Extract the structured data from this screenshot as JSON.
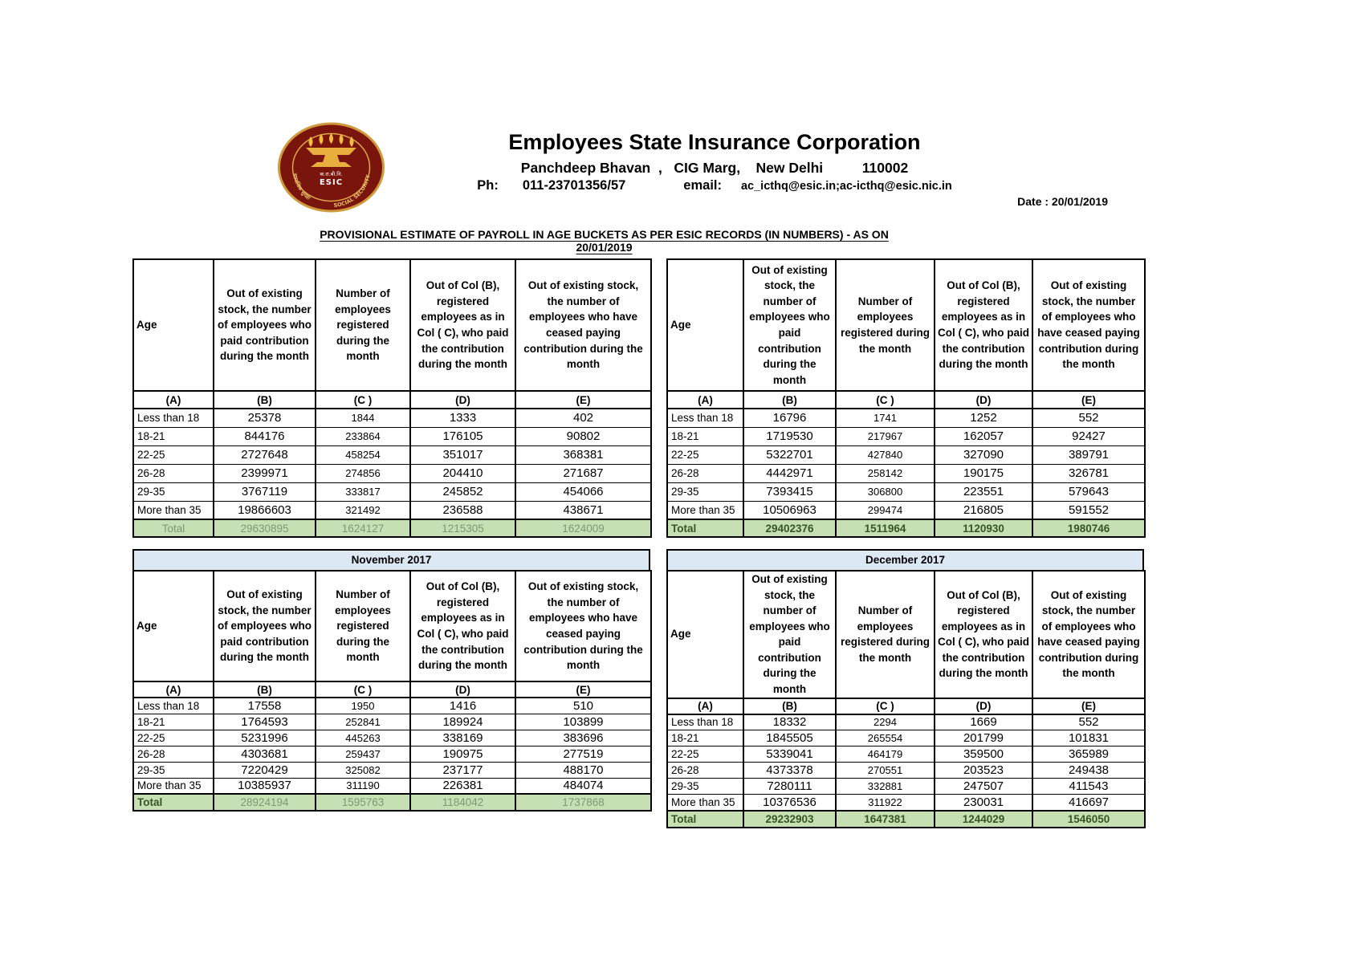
{
  "header": {
    "org_name": "Employees State Insurance Corporation",
    "address_line": "Panchdeep Bhavan  ,   CIG Marg,    New Delhi          110002",
    "phone_label": "Ph:",
    "phone": "011-23701356/57",
    "email_label": "email:",
    "email": "ac_icthq@esic.in;ac-icthq@esic.nic.in",
    "date_line": "Date : 20/01/2019",
    "logo": {
      "hindi_abbr": "क.रा.बी.नि.",
      "abbr": "ESIC",
      "hindi_arc_text": "सामाजिक सुरक्षा",
      "arc_text": "SOCIAL SECURITY"
    }
  },
  "doc_title": "PROVISIONAL ESTIMATE OF PAYROLL IN AGE BUCKETS AS PER ESIC RECORDS (IN NUMBERS) - AS ON 20/01/2019",
  "colors": {
    "total_row_bg": "#c6e0b4",
    "total_muted_text": "#7f9873",
    "total_bold_text": "#375623",
    "month_band_bg": "#dce9f5",
    "logo_maroon": "#7a150d",
    "logo_gold": "#e0a84a"
  },
  "tables": [
    {
      "month": "",
      "columns": [
        "Age",
        "Out of existing stock, the number of employees who paid contribution during the month",
        "Number of employees registered during the month",
        "Out of Col (B), registered employees as in Col ( C), who paid the contribution during the month",
        "Out of existing stock, the number of employees who have ceased paying contribution during the month"
      ],
      "letters": [
        "(A)",
        "(B)",
        "(C )",
        "(D)",
        "(E)"
      ],
      "rows": [
        [
          "Less than 18",
          "25378",
          "1844",
          "1333",
          "402"
        ],
        [
          "18-21",
          "844176",
          "233864",
          "176105",
          "90802"
        ],
        [
          "22-25",
          "2727648",
          "458254",
          "351017",
          "368381"
        ],
        [
          "26-28",
          "2399971",
          "274856",
          "204410",
          "271687"
        ],
        [
          "29-35",
          "3767119",
          "333817",
          "245852",
          "454066"
        ],
        [
          "More than 35",
          "19866603",
          "321492",
          "236588",
          "438671"
        ]
      ],
      "total": [
        "Total",
        "29630895",
        "1624127",
        "1215305",
        "1624009"
      ]
    },
    {
      "month": "",
      "columns": [
        "Age",
        "Out of existing stock, the number of employees who paid contribution during the month",
        "Number of employees registered during the month",
        "Out of Col (B), registered employees as in Col ( C), who paid the contribution during the month",
        "Out of existing stock, the number of employees who have ceased paying contribution during the month"
      ],
      "letters": [
        "(A)",
        "(B)",
        "(C )",
        "(D)",
        "(E)"
      ],
      "rows": [
        [
          "Less than 18",
          "16796",
          "1741",
          "1252",
          "552"
        ],
        [
          "18-21",
          "1719530",
          "217967",
          "162057",
          "92427"
        ],
        [
          "22-25",
          "5322701",
          "427840",
          "327090",
          "389791"
        ],
        [
          "26-28",
          "4442971",
          "258142",
          "190175",
          "326781"
        ],
        [
          "29-35",
          "7393415",
          "306800",
          "223551",
          "579643"
        ],
        [
          "More than 35",
          "10506963",
          "299474",
          "216805",
          "591552"
        ]
      ],
      "total": [
        "Total",
        "29402376",
        "1511964",
        "1120930",
        "1980746"
      ]
    },
    {
      "month": "November 2017",
      "columns": [
        "Age",
        "Out of existing stock, the number of employees who paid contribution during the month",
        "Number of employees registered during the month",
        "Out of Col (B), registered employees as in Col ( C), who paid the contribution during the month",
        "Out of existing stock, the number of employees who have ceased paying contribution during the month"
      ],
      "letters": [
        "(A)",
        "(B)",
        "(C )",
        "(D)",
        "(E)"
      ],
      "rows": [
        [
          "Less than 18",
          "17558",
          "1950",
          "1416",
          "510"
        ],
        [
          "18-21",
          "1764593",
          "252841",
          "189924",
          "103899"
        ],
        [
          "22-25",
          "5231996",
          "445263",
          "338169",
          "383696"
        ],
        [
          "26-28",
          "4303681",
          "259437",
          "190975",
          "277519"
        ],
        [
          "29-35",
          "7220429",
          "325082",
          "237177",
          "488170"
        ],
        [
          "More than 35",
          "10385937",
          "311190",
          "226381",
          "484074"
        ]
      ],
      "total": [
        "Total",
        "28924194",
        "1595763",
        "1184042",
        "1737868"
      ]
    },
    {
      "month": "December 2017",
      "columns": [
        "Age",
        "Out of existing stock, the number of employees who paid contribution during the month",
        "Number of employees registered during the month",
        "Out of Col (B), registered employees as in Col ( C), who paid the contribution during the month",
        "Out of existing stock, the number of employees who have ceased paying contribution during the month"
      ],
      "letters": [
        "(A)",
        "(B)",
        "(C )",
        "(D)",
        "(E)"
      ],
      "rows": [
        [
          "Less than 18",
          "18332",
          "2294",
          "1669",
          "552"
        ],
        [
          "18-21",
          "1845505",
          "265554",
          "201799",
          "101831"
        ],
        [
          "22-25",
          "5339041",
          "464179",
          "359500",
          "365989"
        ],
        [
          "26-28",
          "4373378",
          "270551",
          "203523",
          "249438"
        ],
        [
          "29-35",
          "7280111",
          "332881",
          "247507",
          "411543"
        ],
        [
          "More than 35",
          "10376536",
          "311922",
          "230031",
          "416697"
        ]
      ],
      "total": [
        "Total",
        "29232903",
        "1647381",
        "1244029",
        "1546050"
      ]
    }
  ]
}
